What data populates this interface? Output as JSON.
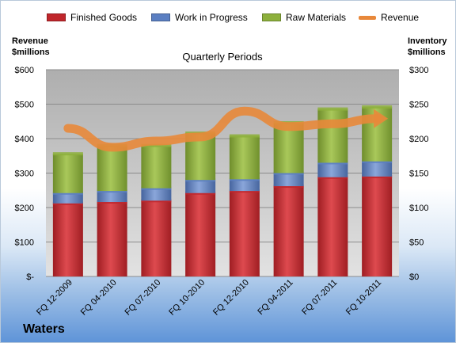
{
  "chart_data": {
    "type": "bar",
    "subtitle": "Quarterly Periods",
    "categories": [
      "FQ 12-2009",
      "FQ 04-2010",
      "FQ 07-2010",
      "FQ 10-2010",
      "FQ 12-2010",
      "FQ 04-2011",
      "FQ 07-2011",
      "FQ 10-2011"
    ],
    "series": [
      {
        "name": "Finished Goods",
        "type": "stacked-bar",
        "axis": "right",
        "color": "#c0262b",
        "values": [
          106,
          108,
          110,
          121,
          124,
          131,
          144,
          145
        ]
      },
      {
        "name": "Work in Progress",
        "type": "stacked-bar",
        "axis": "right",
        "color": "#5b7fc2",
        "values": [
          15,
          16,
          18,
          19,
          17,
          19,
          21,
          22
        ]
      },
      {
        "name": "Raw Materials",
        "type": "stacked-bar",
        "axis": "right",
        "color": "#8db03c",
        "values": [
          57,
          66,
          62,
          68,
          63,
          73,
          78,
          79
        ]
      },
      {
        "name": "Revenue",
        "type": "line",
        "axis": "left",
        "color": "#e8883a",
        "values": [
          430,
          375,
          393,
          405,
          480,
          435,
          443,
          458
        ]
      }
    ],
    "left_axis": {
      "title_line1": "Revenue",
      "title_line2": "$millions",
      "ylim": [
        0,
        600
      ],
      "ticks": [
        "$-",
        "$100",
        "$200",
        "$300",
        "$400",
        "$500",
        "$600"
      ]
    },
    "right_axis": {
      "title_line1": "Inventory",
      "title_line2": "$millions",
      "ylim": [
        0,
        300
      ],
      "ticks": [
        "$0",
        "$50",
        "$100",
        "$150",
        "$200",
        "$250",
        "$300"
      ]
    },
    "legend_position": "top",
    "grid": true
  },
  "company": "Waters"
}
